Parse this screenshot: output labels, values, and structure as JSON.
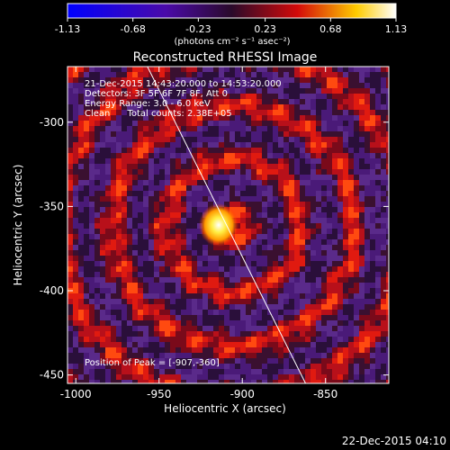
{
  "colorbar": {
    "ticks": [
      "-1.13",
      "-0.68",
      "-0.23",
      "0.23",
      "0.68",
      "1.13"
    ],
    "unit_label": "(photons cm⁻² s⁻¹ asec⁻²)",
    "range": [
      -1.13,
      1.13
    ],
    "colormap": "blue-purple-red-yellow-white"
  },
  "chart_data": {
    "type": "heatmap",
    "title": "Reconstructed RHESSI Image",
    "xlabel": "Heliocentric X (arcsec)",
    "ylabel": "Heliocentric Y (arcsec)",
    "x_ticks": [
      "-1000",
      "-950",
      "-900",
      "-850"
    ],
    "y_ticks": [
      "-300",
      "-350",
      "-400",
      "-450"
    ],
    "xlim": [
      -1005,
      -812
    ],
    "ylim": [
      -455,
      -267
    ],
    "peak": {
      "x": -907,
      "y": -360,
      "value": 1.13
    },
    "limb_line": {
      "from": [
        -957,
        -267
      ],
      "to": [
        -862,
        -455
      ]
    },
    "annotations": [
      "21-Dec-2015 14:43:20.000 to 14:53:20.000",
      "Detectors: 3F 5F 6F 7F 8F, Att 0",
      "Energy Range: 3.0 - 6.0 keV",
      "Clean      Total counts: 2.38E+05"
    ],
    "peak_label": "Position of Peak = [-907,-360]"
  },
  "footer": {
    "timestamp": "22-Dec-2015 04:10"
  },
  "colors": {
    "background": "#000000",
    "text": "#ffffff",
    "limb_line": "#ffffff"
  }
}
